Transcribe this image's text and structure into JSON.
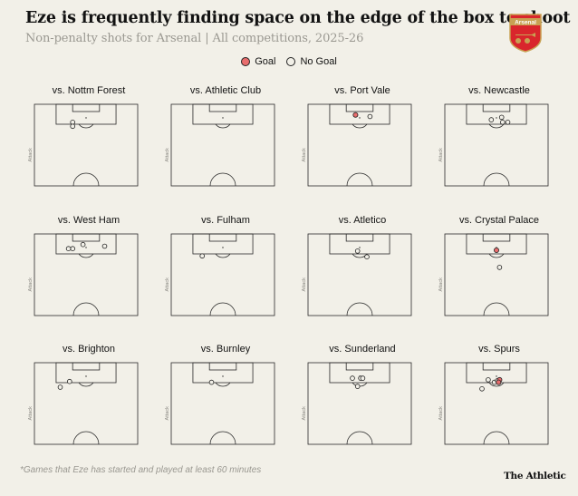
{
  "header": {
    "title": "Eze is frequently finding space on the edge of the box to shoot",
    "subtitle": "Non-penalty shots for Arsenal | All competitions, 2025-26",
    "crest_text": "Arsenal"
  },
  "legend": {
    "goal_label": "Goal",
    "no_goal_label": "No Goal"
  },
  "colors": {
    "goal": "#e86d6d",
    "no_goal": "#f2f0e8",
    "pitch_line": "#2a2a2a",
    "crest_red": "#d9262c",
    "crest_gold": "#c8a152"
  },
  "attack_label": "Attack",
  "footer": {
    "footnote": "*Games that Eze has started and played at least 60 minutes",
    "brand": "The Athletic"
  },
  "chart_data": {
    "type": "scatter",
    "coordinate_system": "pitch, x = 0-100 across pitch width (left to right), y = 0-100 distance from the attacked goal line",
    "panels": [
      {
        "opponent": "vs. Nottm Forest",
        "shots": [
          {
            "x": 37,
            "y": 22,
            "goal": false
          },
          {
            "x": 37,
            "y": 27,
            "goal": false
          }
        ]
      },
      {
        "opponent": "vs. Athletic Club",
        "shots": []
      },
      {
        "opponent": "vs. Port Vale",
        "shots": [
          {
            "x": 46,
            "y": 13,
            "goal": true
          },
          {
            "x": 60,
            "y": 15,
            "goal": false
          }
        ]
      },
      {
        "opponent": "vs. Newcastle",
        "shots": [
          {
            "x": 45,
            "y": 19,
            "goal": false
          },
          {
            "x": 55,
            "y": 16,
            "goal": false
          },
          {
            "x": 56,
            "y": 22,
            "goal": false
          },
          {
            "x": 61,
            "y": 22,
            "goal": false
          }
        ]
      },
      {
        "opponent": "vs. West Ham",
        "shots": [
          {
            "x": 47,
            "y": 13,
            "goal": false
          },
          {
            "x": 37,
            "y": 18,
            "goal": false
          },
          {
            "x": 33,
            "y": 18,
            "goal": false
          },
          {
            "x": 68,
            "y": 15,
            "goal": false
          }
        ]
      },
      {
        "opponent": "vs. Fulham",
        "shots": [
          {
            "x": 30,
            "y": 27,
            "goal": false
          }
        ]
      },
      {
        "opponent": "vs. Atletico",
        "shots": [
          {
            "x": 48,
            "y": 21,
            "goal": false
          },
          {
            "x": 57,
            "y": 28,
            "goal": false
          }
        ]
      },
      {
        "opponent": "vs. Crystal Palace",
        "shots": [
          {
            "x": 50,
            "y": 20,
            "goal": true
          },
          {
            "x": 53,
            "y": 41,
            "goal": false
          }
        ]
      },
      {
        "opponent": "vs. Brighton",
        "shots": [
          {
            "x": 34,
            "y": 23,
            "goal": false
          },
          {
            "x": 25,
            "y": 30,
            "goal": false
          }
        ]
      },
      {
        "opponent": "vs. Burnley",
        "shots": [
          {
            "x": 39,
            "y": 24,
            "goal": false
          }
        ]
      },
      {
        "opponent": "vs. Sunderland",
        "shots": [
          {
            "x": 43,
            "y": 19,
            "goal": false
          },
          {
            "x": 51,
            "y": 19,
            "goal": false
          },
          {
            "x": 53,
            "y": 19,
            "goal": false
          },
          {
            "x": 48,
            "y": 29,
            "goal": false
          }
        ]
      },
      {
        "opponent": "vs. Spurs",
        "shots": [
          {
            "x": 42,
            "y": 21,
            "goal": false
          },
          {
            "x": 48,
            "y": 24,
            "goal": false
          },
          {
            "x": 51,
            "y": 22,
            "goal": false
          },
          {
            "x": 53,
            "y": 21,
            "goal": true
          },
          {
            "x": 52,
            "y": 24,
            "goal": true
          },
          {
            "x": 36,
            "y": 32,
            "goal": false
          }
        ]
      }
    ]
  }
}
